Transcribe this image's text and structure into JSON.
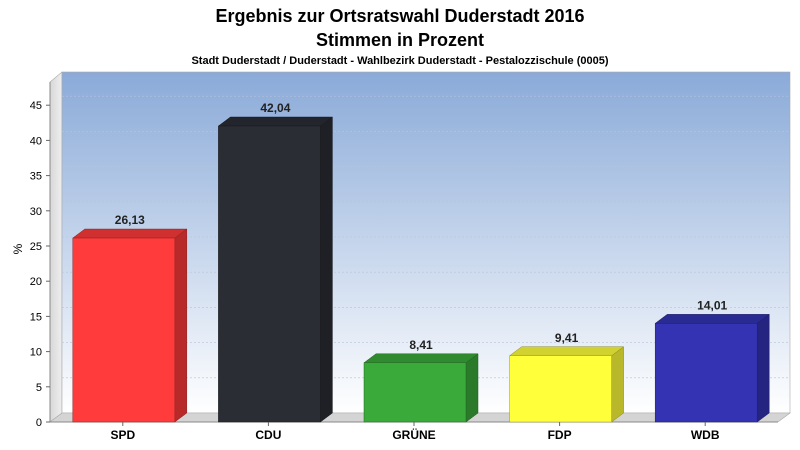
{
  "chart_data": {
    "type": "bar",
    "title": "Ergebnis zur Ortsratswahl Duderstadt 2016",
    "title2": "Stimmen in Prozent",
    "subtitle": "Stadt Duderstadt / Duderstadt - Wahlbezirk Duderstadt - Pestalozzischule (0005)",
    "ylabel": "%",
    "xlabel": "",
    "ylim": [
      0,
      48
    ],
    "yticks": [
      0,
      5,
      10,
      15,
      20,
      25,
      30,
      35,
      40,
      45
    ],
    "grid": true,
    "categories": [
      "SPD",
      "CDU",
      "GRÜNE",
      "FDP",
      "WDB"
    ],
    "values": [
      26.13,
      42.04,
      8.41,
      9.41,
      14.01
    ],
    "value_labels": [
      "26,13",
      "42,04",
      "8,41",
      "9,41",
      "14,01"
    ],
    "colors": [
      "#ff3b3b",
      "#2a2d34",
      "#3aaa3a",
      "#ffff3a",
      "#3333b3"
    ]
  }
}
